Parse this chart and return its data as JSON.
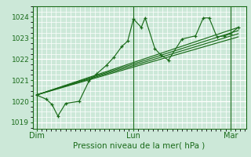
{
  "title": "",
  "xlabel": "Pression niveau de la mer( hPa )",
  "ylabel": "",
  "bg_color": "#cce8d8",
  "grid_color": "#ffffff",
  "line_color": "#1a6b1a",
  "x_ticks": [
    0.0,
    0.5,
    1.0
  ],
  "x_tick_labels": [
    "Dim",
    "Lun",
    "Mar"
  ],
  "ylim": [
    1018.7,
    1024.5
  ],
  "xlim": [
    -0.02,
    1.08
  ],
  "yticks": [
    1019,
    1020,
    1021,
    1022,
    1023,
    1024
  ],
  "series_main": [
    0.0,
    1020.3,
    0.05,
    1020.1,
    0.08,
    1019.85,
    0.11,
    1019.3,
    0.15,
    1019.9,
    0.22,
    1020.0,
    0.27,
    1020.95,
    0.31,
    1021.3,
    0.36,
    1021.7,
    0.4,
    1022.1,
    0.44,
    1022.6,
    0.47,
    1022.85,
    0.5,
    1023.9,
    0.54,
    1023.5,
    0.56,
    1023.95,
    0.61,
    1022.5,
    0.64,
    1022.2,
    0.68,
    1021.95,
    0.75,
    1022.95,
    0.82,
    1023.1,
    0.86,
    1023.95,
    0.89,
    1023.95,
    0.93,
    1023.05,
    0.97,
    1023.1,
    1.0,
    1023.2,
    1.04,
    1023.5
  ],
  "series_trend": [
    [
      0.0,
      1020.3,
      1.04,
      1023.5
    ],
    [
      0.0,
      1020.3,
      1.04,
      1023.35
    ],
    [
      0.0,
      1020.3,
      1.04,
      1023.2
    ],
    [
      0.0,
      1020.3,
      1.04,
      1023.05
    ]
  ]
}
